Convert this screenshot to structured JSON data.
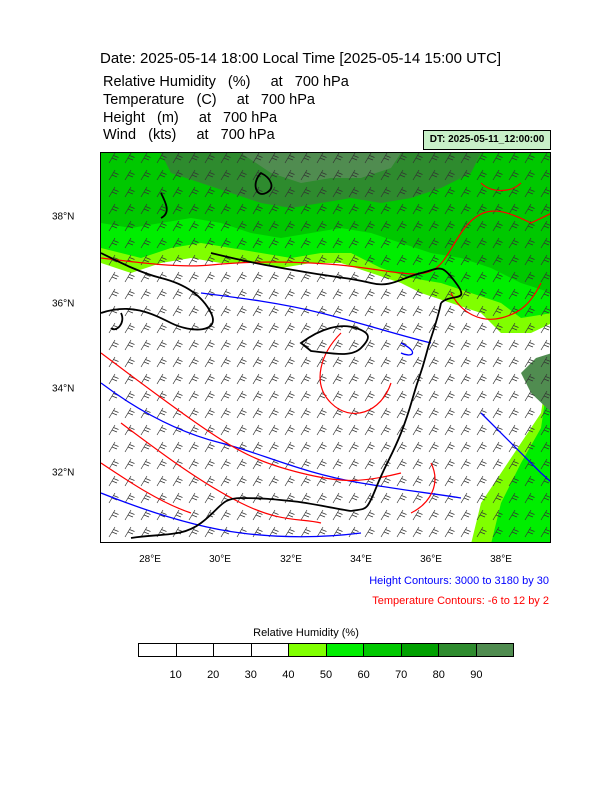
{
  "header": {
    "title": "Date: 2025-05-14  18:00 Local Time [2025-05-14  15:00 UTC]",
    "fields": [
      "Relative Humidity   (%)     at   700 hPa",
      "Temperature   (C)     at   700 hPa",
      "Height   (m)     at   700 hPa",
      "Wind   (kts)     at   700 hPa"
    ],
    "dt_label": "DT: 2025-05-11_12:00:00"
  },
  "map": {
    "x_ticks": [
      "28°E",
      "30°E",
      "32°E",
      "34°E",
      "36°E",
      "38°E"
    ],
    "y_ticks": [
      "38°N",
      "36°N",
      "34°N",
      "32°N"
    ],
    "colors": {
      "coast": "#000000",
      "height_contour": "#0000ff",
      "temp_contour": "#ff0000"
    }
  },
  "notes": {
    "height": "Height Contours: 3000 to 3180 by 30",
    "temperature": "Temperature Contours: -6 to 12 by 2"
  },
  "colorbar": {
    "title": "Relative Humidity  (%)",
    "labels": [
      "10",
      "20",
      "30",
      "40",
      "50",
      "60",
      "70",
      "80",
      "90"
    ],
    "colors": [
      "#ffffff",
      "#ffffff",
      "#ffffff",
      "#ffffff",
      "#80ff00",
      "#00ee00",
      "#00c800",
      "#00a000",
      "#2e8b2e",
      "#508c50"
    ]
  }
}
